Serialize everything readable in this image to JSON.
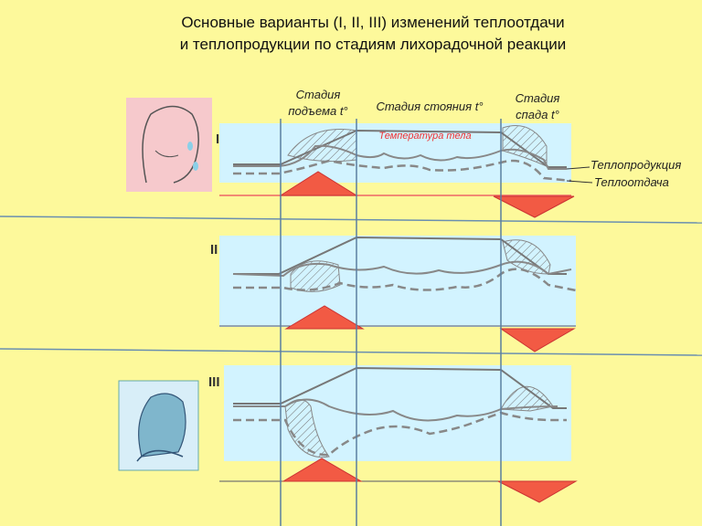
{
  "header": {
    "title_line1": "Основные варианты (I, II, III) изменений теплоотдачи",
    "title_line2": "и теплопродукции по стадиям лихорадочной реакции"
  },
  "stages": [
    [
      "Стадия",
      "подъема t°"
    ],
    [
      "Стадия стояния t°"
    ],
    [
      "Стадия",
      "спада t°"
    ]
  ],
  "labels": {
    "temperature": "Температура тела",
    "heat_production": "Теплопродукция",
    "heat_loss": "Теплоотдача"
  },
  "variants": [
    "I",
    "II",
    "III"
  ]
}
